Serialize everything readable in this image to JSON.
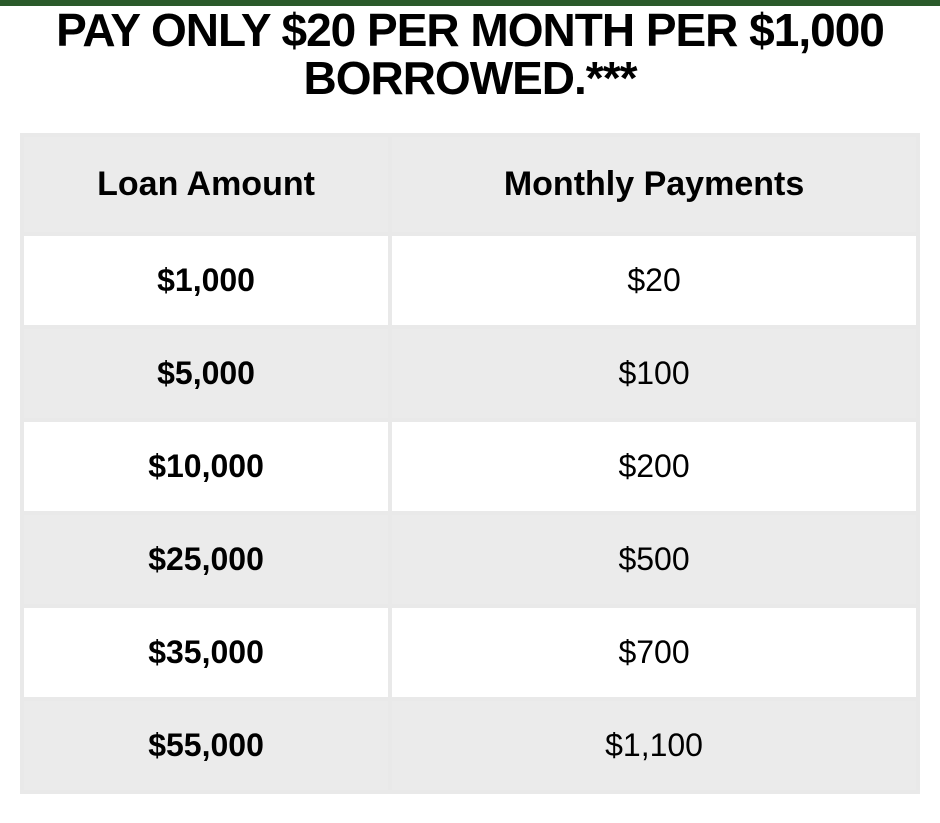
{
  "headline": "PAY ONLY $20 PER MONTH PER $1,000 BORROWED.***",
  "table": {
    "type": "table",
    "columns": [
      "Loan Amount",
      "Monthly Payments"
    ],
    "rows": [
      {
        "loan_amount": "$1,000",
        "monthly_payment": "$20"
      },
      {
        "loan_amount": "$5,000",
        "monthly_payment": "$100"
      },
      {
        "loan_amount": "$10,000",
        "monthly_payment": "$200"
      },
      {
        "loan_amount": "$25,000",
        "monthly_payment": "$500"
      },
      {
        "loan_amount": "$35,000",
        "monthly_payment": "$700"
      },
      {
        "loan_amount": "$55,000",
        "monthly_payment": "$1,100"
      }
    ],
    "header_bg_color": "#ebebeb",
    "row_odd_bg_color": "#ffffff",
    "row_even_bg_color": "#ebebeb",
    "gap_color": "#e9e9e9",
    "header_fontsize": 34,
    "cell_fontsize": 32,
    "loan_amount_font_weight": 700,
    "monthly_payment_font_weight": 400,
    "column_widths_pct": [
      41,
      59
    ]
  },
  "top_bar_color": "#2a5a2a",
  "headline_fontsize": 46,
  "headline_font_weight": 900,
  "text_color": "#000000",
  "background_color": "#ffffff"
}
